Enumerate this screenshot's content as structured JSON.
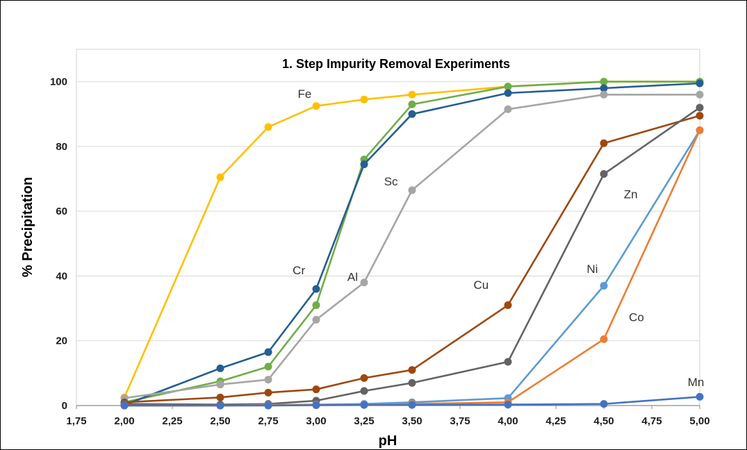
{
  "chart_data": {
    "type": "line",
    "title": "1. Step Impurity Removal Experiments",
    "xlabel": "pH",
    "ylabel": "% Precipitation",
    "xlim": [
      1.75,
      5.0
    ],
    "ylim": [
      0,
      110
    ],
    "x_ticks": [
      1.75,
      2.0,
      2.25,
      2.5,
      2.75,
      3.0,
      3.25,
      3.5,
      3.75,
      4.0,
      4.25,
      4.5,
      4.75,
      5.0
    ],
    "x_tick_labels": [
      "1,75",
      "2,00",
      "2,25",
      "2,50",
      "2,75",
      "3,00",
      "3,25",
      "3,50",
      "3,75",
      "4,00",
      "4,25",
      "4,50",
      "4,75",
      "5,00"
    ],
    "y_ticks": [
      0,
      20,
      40,
      60,
      80,
      100
    ],
    "y_tick_labels": [
      "0",
      "20",
      "40",
      "60",
      "80",
      "100"
    ],
    "grid": "horizontal",
    "legend": "none",
    "x": [
      2.0,
      2.5,
      2.75,
      3.0,
      3.25,
      3.5,
      4.0,
      4.5,
      5.0
    ],
    "series": [
      {
        "name": "Fe",
        "color": "#FFC000",
        "values": [
          2.5,
          70.5,
          86,
          92.5,
          94.5,
          96,
          98.5,
          100,
          100
        ],
        "label_at": [
          2.94,
          95
        ]
      },
      {
        "name": "Al",
        "color": "#70AD47",
        "values": [
          1,
          7.5,
          12,
          31,
          76,
          93,
          98.5,
          100,
          100
        ],
        "label_at": [
          3.19,
          38.5
        ]
      },
      {
        "name": "Cr",
        "color": "#255E91",
        "values": [
          0.2,
          11.5,
          16.5,
          36,
          74.5,
          90,
          96.5,
          98,
          99.5
        ],
        "label_at": [
          2.91,
          40.5
        ]
      },
      {
        "name": "Sc",
        "color": "#A5A5A5",
        "values": [
          2.3,
          6.5,
          8,
          26.5,
          38,
          66.5,
          91.5,
          96,
          96
        ],
        "label_at": [
          3.39,
          68
        ]
      },
      {
        "name": "Cu",
        "color": "#9E480E",
        "values": [
          1,
          2.5,
          4,
          5,
          8.5,
          11,
          31,
          81,
          89.5
        ],
        "label_at": [
          3.86,
          36
        ]
      },
      {
        "name": "Zn",
        "color": "#636363",
        "values": [
          0.5,
          0.3,
          0.5,
          1.5,
          4.5,
          7,
          13.5,
          71.5,
          92
        ],
        "label_at": [
          4.64,
          64
        ]
      },
      {
        "name": "Ni",
        "color": "#5B9BD5",
        "values": [
          0,
          0,
          0.2,
          0.3,
          0.5,
          1,
          2.3,
          37,
          85
        ],
        "label_at": [
          4.44,
          41
        ]
      },
      {
        "name": "Co",
        "color": "#ED7D31",
        "values": [
          0,
          0,
          0.1,
          0.2,
          0.3,
          0.5,
          1,
          20.5,
          85
        ],
        "label_at": [
          4.67,
          26
        ]
      },
      {
        "name": "Mn",
        "color": "#4472C4",
        "values": [
          0,
          0,
          0,
          0.1,
          0.2,
          0.2,
          0.3,
          0.5,
          2.7
        ],
        "label_at": [
          4.98,
          6
        ]
      }
    ]
  }
}
